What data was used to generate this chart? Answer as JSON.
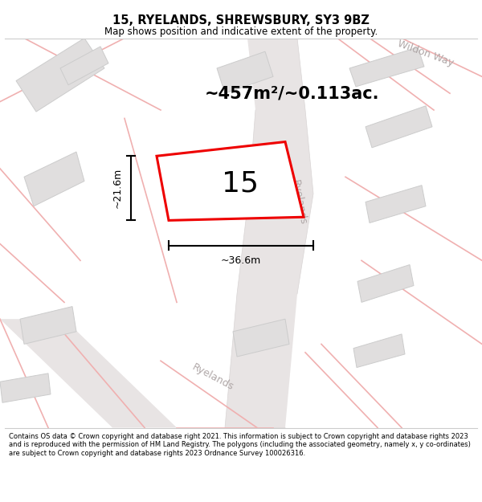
{
  "title": "15, RYELANDS, SHREWSBURY, SY3 9BZ",
  "subtitle": "Map shows position and indicative extent of the property.",
  "area_text": "~457m²/~0.113ac.",
  "label_number": "15",
  "dim_width": "~36.6m",
  "dim_height": "~21.6m",
  "footer": "Contains OS data © Crown copyright and database right 2021. This information is subject to Crown copyright and database rights 2023 and is reproduced with the permission of HM Land Registry. The polygons (including the associated geometry, namely x, y co-ordinates) are subject to Crown copyright and database rights 2023 Ordnance Survey 100026316.",
  "bg_color": "#ffffff",
  "map_bg": "#f8f6f6",
  "plot_color": "#ee0000",
  "plot_fill": "#ffffff",
  "building_fill": "#e0dede",
  "building_stroke": "#cccccc",
  "road_fill": "#e8e4e4",
  "road_edge": "#d8d4d4",
  "pink_line_color": "#f0b0b0",
  "street_label_color": "#b0a8a8",
  "wildon_way_color": "#b0a8a8",
  "separator_color": "#cccccc"
}
